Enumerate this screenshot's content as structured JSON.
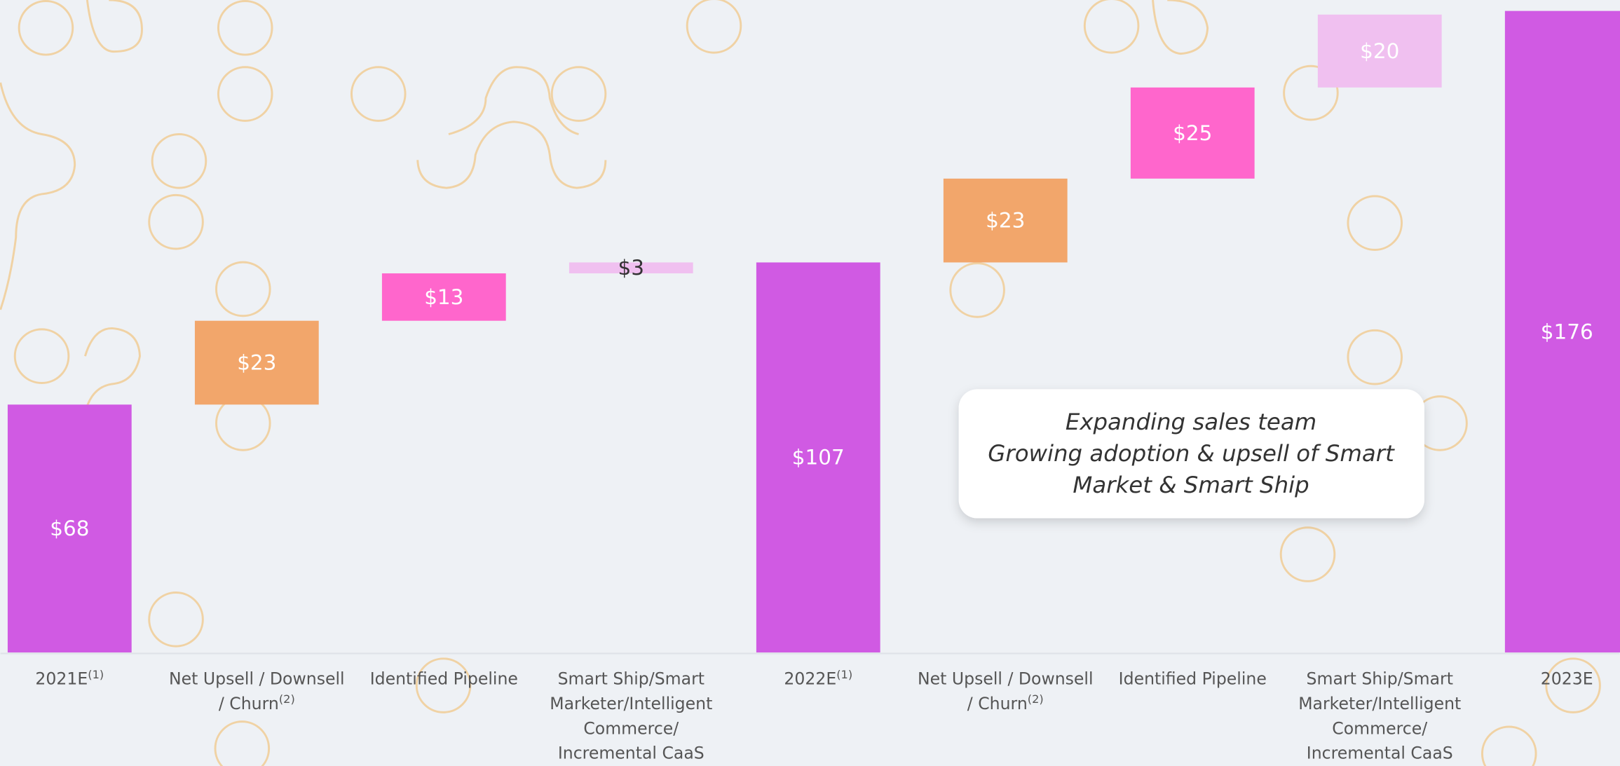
{
  "chart_data": {
    "type": "waterfall",
    "categories": [
      "2021E",
      "Net Upsell / Downsell / Churn",
      "Identified Pipeline",
      "Smart Ship/Smart Marketer/Intelligent Commerce/Incremental CaaS",
      "2022E",
      "Net Upsell / Downsell / Churn",
      "Identified Pipeline",
      "Smart Ship/Smart Marketer/Intelligent Commerce/Incremental CaaS",
      "2023E"
    ],
    "footnotes": [
      "(1)",
      "(2)",
      null,
      null,
      "(1)",
      "(2)",
      null,
      null,
      null
    ],
    "values": [
      68,
      23,
      13,
      3,
      107,
      23,
      25,
      20,
      176
    ],
    "value_labels": [
      "$68",
      "$23",
      "$13",
      "$3",
      "$107",
      "$23",
      "$25",
      "$20",
      "$176"
    ],
    "bar_types": [
      "total",
      "increase",
      "increase",
      "increase",
      "total",
      "increase",
      "increase",
      "increase",
      "total"
    ],
    "colors": [
      "#d05ae3",
      "#f2a66b",
      "#ff66cc",
      "#f0c0f0",
      "#d05ae3",
      "#f2a66b",
      "#ff66cc",
      "#f0c0f0",
      "#d05ae3"
    ],
    "ylim": [
      0,
      179
    ],
    "annotation": [
      "Expanding sales team",
      "Growing adoption & upsell of Smart",
      "Market & Smart Ship"
    ]
  }
}
